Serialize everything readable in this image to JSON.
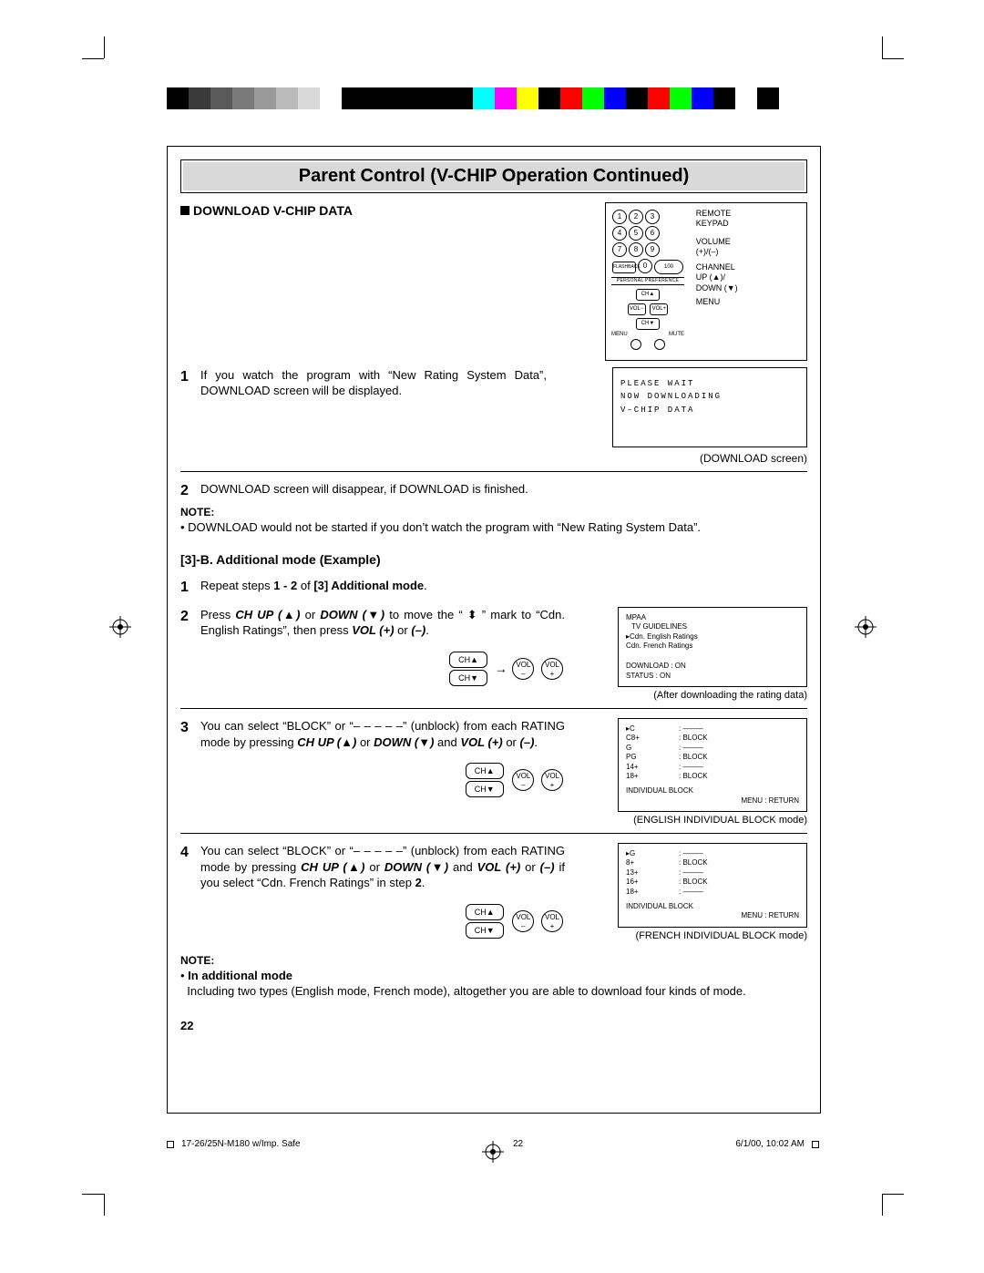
{
  "colorbar": [
    "#000000",
    "#3a3a3a",
    "#5a5a5a",
    "#7a7a7a",
    "#9a9a9a",
    "#bababa",
    "#d9d9d9",
    "#ffffff",
    "#000000",
    "#000000",
    "#000000",
    "#000000",
    "#000000",
    "#000000",
    "#00ffff",
    "#ff00ff",
    "#ffff00",
    "#000000",
    "#ff0000",
    "#00ff00",
    "#0000ff",
    "#000000",
    "#ff0000",
    "#00ff00",
    "#0000ff",
    "#000000",
    "#ffffff",
    "#000000"
  ],
  "title": "Parent Control (V-CHIP Operation Continued)",
  "section_download": "DOWNLOAD V-CHIP DATA",
  "remote_labels": {
    "l1": "REMOTE",
    "l2": "KEYPAD",
    "l3": "VOLUME",
    "l4": "(+)/(–)",
    "l5": "CHANNEL",
    "l6": "UP (▲)/",
    "l7": "DOWN (▼)",
    "l8": "MENU"
  },
  "keypad_label_pref": "PERSONAL PREFERENCE",
  "dl_screen": {
    "l1": "PLEASE  WAIT",
    "l2": "NOW  DOWNLOADING",
    "l3": "V–CHIP  DATA"
  },
  "dl_caption": "(DOWNLOAD screen)",
  "step1": "If you watch the program with “New Rating System Data”, DOWNLOAD screen will be displayed.",
  "step2": "DOWNLOAD screen will disappear, if DOWNLOAD is finished.",
  "note1_head": "NOTE:",
  "note1_body": "DOWNLOAD would not be started if you don’t watch the program with “New Rating System Data”.",
  "sec3b_head": "[3]-B. Additional mode (Example)",
  "sec3b_step1_a": "Repeat steps ",
  "sec3b_step1_b": "1 - 2",
  "sec3b_step1_c": " of ",
  "sec3b_step1_d": "[3] Additional mode",
  "sec3b_step1_e": ".",
  "sec3b_step2_a": "Press ",
  "sec3b_step2_b": "CH UP (▲)",
  "sec3b_step2_c": " or ",
  "sec3b_step2_d": "DOWN (▼)",
  "sec3b_step2_e": "  to move the “ ⬍ ” mark to “Cdn. English Ratings”, then press ",
  "sec3b_step2_f": "VOL (+)",
  "sec3b_step2_g": " or ",
  "sec3b_step2_h": "(–)",
  "sec3b_step2_i": ".",
  "btn_chup": "CH▲",
  "btn_chdn": "CH▼",
  "btn_volm": "VOL\n–",
  "btn_volp": "VOL\n+",
  "arrow": "→",
  "osd_after": {
    "l1": "MPAA",
    "l2": "TV GUIDELINES",
    "l3": "▸Cdn. English Ratings",
    "l4": " Cdn. French Ratings",
    "l5": "DOWNLOAD : ON",
    "l6": "STATUS      : ON"
  },
  "osd_after_caption": "(After downloading the rating data)",
  "step3_a": "You can select “BLOCK” or “– – – – –” (unblock) from each RATING mode by pressing ",
  "step3_b": "CH UP (▲)",
  "step3_c": " or ",
  "step3_d": "DOWN (▼)",
  "step3_e": "  and ",
  "step3_f": "VOL (+)",
  "step3_g": " or ",
  "step3_h": "(–)",
  "step3_i": ".",
  "osd_eng": {
    "ratings": [
      "▸C",
      "C8+",
      "G",
      "PG",
      "14+",
      "18+"
    ],
    "blocks": [
      ": –––––",
      ": BLOCK",
      ": –––––",
      ": BLOCK",
      ": –––––",
      ": BLOCK"
    ],
    "foot1": "INDIVIDUAL BLOCK",
    "foot2": "MENU : RETURN"
  },
  "osd_eng_caption": "(ENGLISH INDIVIDUAL BLOCK mode)",
  "step4_a": "You can select “BLOCK” or “– – – – –” (unblock) from each RATING mode by pressing ",
  "step4_b": "CH UP (▲)",
  "step4_c": " or ",
  "step4_d": "DOWN (▼)",
  "step4_e": "  and ",
  "step4_f": "VOL (+)",
  "step4_g": " or ",
  "step4_h": "(–)",
  "step4_i": " if you select “Cdn. French Ratings” in step ",
  "step4_j": "2",
  "step4_k": ".",
  "osd_fr": {
    "ratings": [
      "▸G",
      "8+",
      "13+",
      "16+",
      "18+"
    ],
    "blocks": [
      ": –––––",
      ": BLOCK",
      ": –––––",
      ": BLOCK",
      ": –––––"
    ],
    "foot1": "INDIVIDUAL BLOCK",
    "foot2": "MENU : RETURN"
  },
  "osd_fr_caption": "(FRENCH INDIVIDUAL BLOCK mode)",
  "note2_head": "NOTE:",
  "note2_sub": "In additional mode",
  "note2_body": "Including two types (English mode, French mode), altogether you are able to download four kinds of mode.",
  "page_num": "22",
  "footer_left": "17-26/25N-M180 w/Imp. Safe",
  "footer_mid": "22",
  "footer_right": "6/1/00, 10:02 AM"
}
